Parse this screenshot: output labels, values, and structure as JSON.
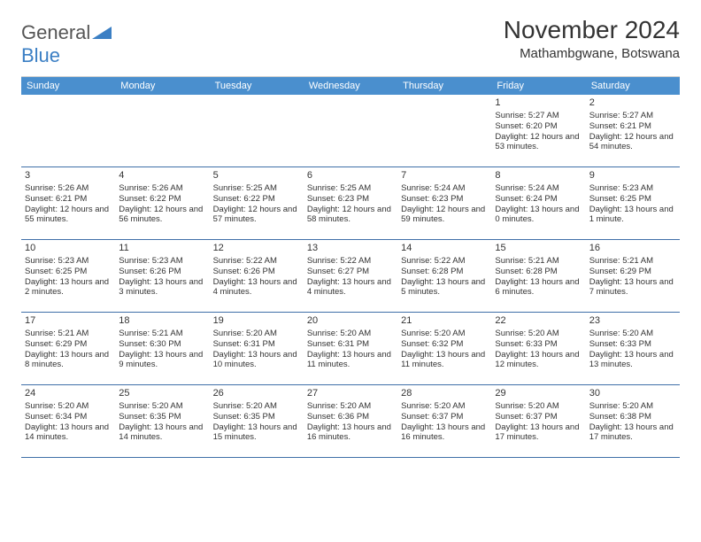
{
  "logo": {
    "general": "General",
    "blue": "Blue"
  },
  "header": {
    "title": "November 2024",
    "subtitle": "Mathambgwane, Botswana"
  },
  "colors": {
    "header_bg": "#4a8fce",
    "header_text": "#ffffff",
    "row_border": "#3f6fa8",
    "logo_blue": "#3b7fc4"
  },
  "weekdays": [
    "Sunday",
    "Monday",
    "Tuesday",
    "Wednesday",
    "Thursday",
    "Friday",
    "Saturday"
  ],
  "grid": {
    "first_weekday_index": 5,
    "days_in_month": 30
  },
  "days": {
    "1": {
      "sunrise": "5:27 AM",
      "sunset": "6:20 PM",
      "daylight": "12 hours and 53 minutes."
    },
    "2": {
      "sunrise": "5:27 AM",
      "sunset": "6:21 PM",
      "daylight": "12 hours and 54 minutes."
    },
    "3": {
      "sunrise": "5:26 AM",
      "sunset": "6:21 PM",
      "daylight": "12 hours and 55 minutes."
    },
    "4": {
      "sunrise": "5:26 AM",
      "sunset": "6:22 PM",
      "daylight": "12 hours and 56 minutes."
    },
    "5": {
      "sunrise": "5:25 AM",
      "sunset": "6:22 PM",
      "daylight": "12 hours and 57 minutes."
    },
    "6": {
      "sunrise": "5:25 AM",
      "sunset": "6:23 PM",
      "daylight": "12 hours and 58 minutes."
    },
    "7": {
      "sunrise": "5:24 AM",
      "sunset": "6:23 PM",
      "daylight": "12 hours and 59 minutes."
    },
    "8": {
      "sunrise": "5:24 AM",
      "sunset": "6:24 PM",
      "daylight": "13 hours and 0 minutes."
    },
    "9": {
      "sunrise": "5:23 AM",
      "sunset": "6:25 PM",
      "daylight": "13 hours and 1 minute."
    },
    "10": {
      "sunrise": "5:23 AM",
      "sunset": "6:25 PM",
      "daylight": "13 hours and 2 minutes."
    },
    "11": {
      "sunrise": "5:23 AM",
      "sunset": "6:26 PM",
      "daylight": "13 hours and 3 minutes."
    },
    "12": {
      "sunrise": "5:22 AM",
      "sunset": "6:26 PM",
      "daylight": "13 hours and 4 minutes."
    },
    "13": {
      "sunrise": "5:22 AM",
      "sunset": "6:27 PM",
      "daylight": "13 hours and 4 minutes."
    },
    "14": {
      "sunrise": "5:22 AM",
      "sunset": "6:28 PM",
      "daylight": "13 hours and 5 minutes."
    },
    "15": {
      "sunrise": "5:21 AM",
      "sunset": "6:28 PM",
      "daylight": "13 hours and 6 minutes."
    },
    "16": {
      "sunrise": "5:21 AM",
      "sunset": "6:29 PM",
      "daylight": "13 hours and 7 minutes."
    },
    "17": {
      "sunrise": "5:21 AM",
      "sunset": "6:29 PM",
      "daylight": "13 hours and 8 minutes."
    },
    "18": {
      "sunrise": "5:21 AM",
      "sunset": "6:30 PM",
      "daylight": "13 hours and 9 minutes."
    },
    "19": {
      "sunrise": "5:20 AM",
      "sunset": "6:31 PM",
      "daylight": "13 hours and 10 minutes."
    },
    "20": {
      "sunrise": "5:20 AM",
      "sunset": "6:31 PM",
      "daylight": "13 hours and 11 minutes."
    },
    "21": {
      "sunrise": "5:20 AM",
      "sunset": "6:32 PM",
      "daylight": "13 hours and 11 minutes."
    },
    "22": {
      "sunrise": "5:20 AM",
      "sunset": "6:33 PM",
      "daylight": "13 hours and 12 minutes."
    },
    "23": {
      "sunrise": "5:20 AM",
      "sunset": "6:33 PM",
      "daylight": "13 hours and 13 minutes."
    },
    "24": {
      "sunrise": "5:20 AM",
      "sunset": "6:34 PM",
      "daylight": "13 hours and 14 minutes."
    },
    "25": {
      "sunrise": "5:20 AM",
      "sunset": "6:35 PM",
      "daylight": "13 hours and 14 minutes."
    },
    "26": {
      "sunrise": "5:20 AM",
      "sunset": "6:35 PM",
      "daylight": "13 hours and 15 minutes."
    },
    "27": {
      "sunrise": "5:20 AM",
      "sunset": "6:36 PM",
      "daylight": "13 hours and 16 minutes."
    },
    "28": {
      "sunrise": "5:20 AM",
      "sunset": "6:37 PM",
      "daylight": "13 hours and 16 minutes."
    },
    "29": {
      "sunrise": "5:20 AM",
      "sunset": "6:37 PM",
      "daylight": "13 hours and 17 minutes."
    },
    "30": {
      "sunrise": "5:20 AM",
      "sunset": "6:38 PM",
      "daylight": "13 hours and 17 minutes."
    }
  },
  "labels": {
    "sunrise": "Sunrise: ",
    "sunset": "Sunset: ",
    "daylight": "Daylight: "
  }
}
